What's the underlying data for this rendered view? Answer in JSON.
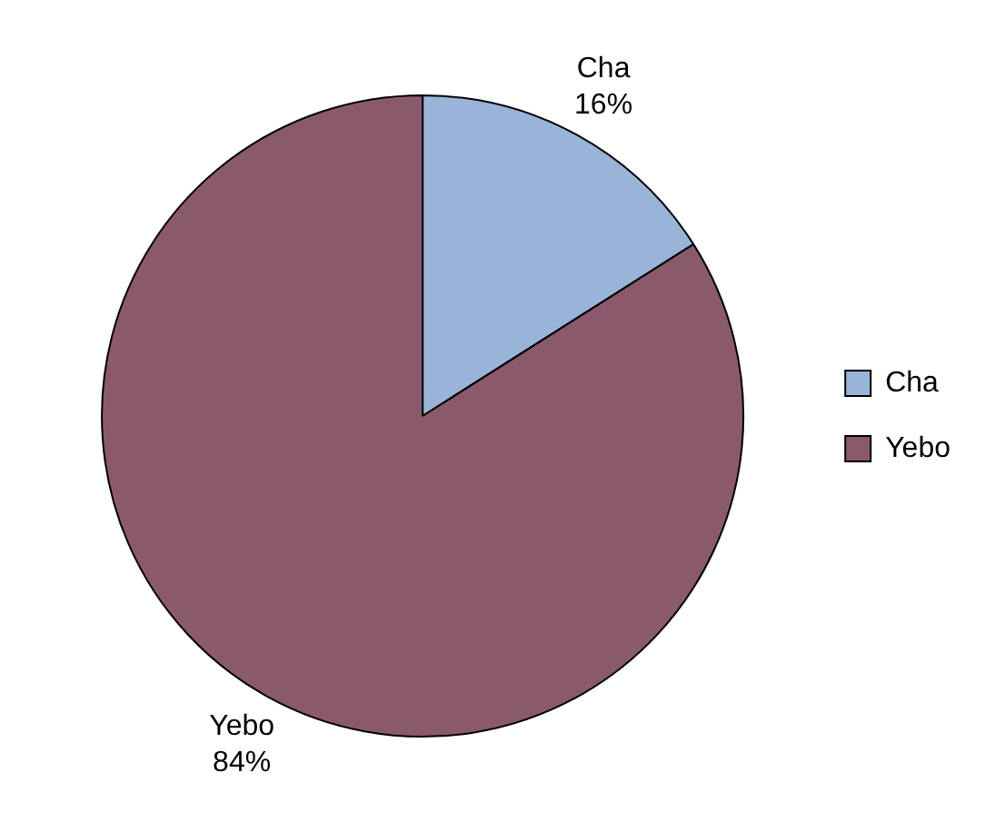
{
  "chart_data": {
    "type": "pie",
    "categories": [
      "Cha",
      "Yebo"
    ],
    "values": [
      16,
      84
    ],
    "colors": [
      "#9ab3d8",
      "#8a5a6c"
    ],
    "value_labels": [
      "16%",
      "84%"
    ],
    "legend": "right"
  }
}
